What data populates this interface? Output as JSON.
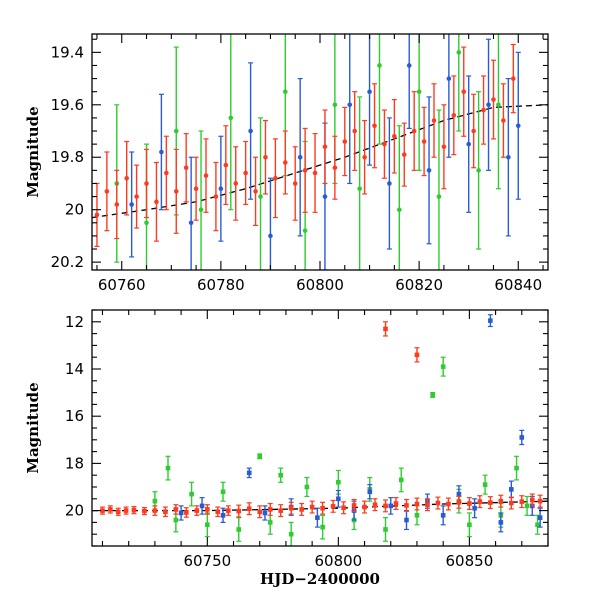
{
  "chart_data": [
    {
      "type": "scatter",
      "panel": "top",
      "xlabel": "",
      "ylabel": "Magnitude",
      "xlim": [
        60754,
        60846
      ],
      "ylim": [
        20.23,
        19.33
      ],
      "y_inverted": true,
      "xticks": [
        60760,
        60780,
        60800,
        60820,
        60840
      ],
      "xtick_labels": [
        "60760",
        "60780",
        "60800",
        "60820",
        "60840"
      ],
      "yticks": [
        19.4,
        19.6,
        19.8,
        20.0,
        20.2
      ],
      "ytick_labels": [
        "19.4",
        "19.6",
        "19.8",
        "20",
        "20.2"
      ],
      "grid": false,
      "legend": "none",
      "series": [
        {
          "color": "#ff3b1f",
          "marker": "circle-errorbar",
          "points": [
            [
              60755,
              20.02,
              0.12
            ],
            [
              60757,
              19.93,
              0.15
            ],
            [
              60759,
              19.98,
              0.13
            ],
            [
              60761,
              19.88,
              0.14
            ],
            [
              60763,
              19.95,
              0.12
            ],
            [
              60765,
              19.9,
              0.13
            ],
            [
              60767,
              19.97,
              0.15
            ],
            [
              60769,
              19.86,
              0.14
            ],
            [
              60771,
              19.93,
              0.16
            ],
            [
              60773,
              19.84,
              0.13
            ],
            [
              60775,
              19.92,
              0.12
            ],
            [
              60777,
              19.87,
              0.14
            ],
            [
              60779,
              19.95,
              0.13
            ],
            [
              60781,
              19.83,
              0.15
            ],
            [
              60783,
              19.9,
              0.14
            ],
            [
              60785,
              19.86,
              0.12
            ],
            [
              60787,
              19.93,
              0.13
            ],
            [
              60789,
              19.8,
              0.14
            ],
            [
              60791,
              19.88,
              0.15
            ],
            [
              60793,
              19.82,
              0.12
            ],
            [
              60795,
              19.9,
              0.14
            ],
            [
              60797,
              19.85,
              0.16
            ],
            [
              60799,
              19.86,
              0.15
            ],
            [
              60801,
              19.76,
              0.14
            ],
            [
              60803,
              19.84,
              0.12
            ],
            [
              60805,
              19.74,
              0.13
            ],
            [
              60807,
              19.7,
              0.15
            ],
            [
              60809,
              19.8,
              0.14
            ],
            [
              60811,
              19.68,
              0.16
            ],
            [
              60813,
              19.75,
              0.13
            ],
            [
              60815,
              19.72,
              0.14
            ],
            [
              60817,
              19.79,
              0.12
            ],
            [
              60819,
              19.7,
              0.15
            ],
            [
              60821,
              19.74,
              0.13
            ],
            [
              60823,
              19.66,
              0.14
            ],
            [
              60825,
              19.76,
              0.16
            ],
            [
              60827,
              19.64,
              0.15
            ],
            [
              60829,
              19.55,
              0.17
            ],
            [
              60831,
              19.7,
              0.14
            ],
            [
              60833,
              19.62,
              0.13
            ],
            [
              60835,
              19.58,
              0.15
            ],
            [
              60837,
              19.66,
              0.14
            ],
            [
              60839,
              19.5,
              0.13
            ]
          ]
        },
        {
          "color": "#2a5bd7",
          "marker": "circle-errorbar",
          "points": [
            [
              60762,
              19.98,
              0.2
            ],
            [
              60768,
              19.78,
              0.22
            ],
            [
              60774,
              20.05,
              0.25
            ],
            [
              60780,
              19.92,
              0.2
            ],
            [
              60786,
              19.7,
              0.26
            ],
            [
              60790,
              20.1,
              0.22
            ],
            [
              60796,
              19.8,
              0.3
            ],
            [
              60801,
              19.95,
              0.28
            ],
            [
              60806,
              19.6,
              0.3
            ],
            [
              60810,
              19.55,
              0.28
            ],
            [
              60814,
              19.9,
              0.25
            ],
            [
              60818,
              19.45,
              0.24
            ],
            [
              60822,
              19.85,
              0.28
            ],
            [
              60826,
              19.5,
              0.3
            ],
            [
              60830,
              19.75,
              0.26
            ],
            [
              60834,
              19.6,
              0.25
            ],
            [
              60838,
              19.8,
              0.3
            ],
            [
              60840,
              19.68,
              0.28
            ]
          ]
        },
        {
          "color": "#2ecc2e",
          "marker": "circle-errorbar",
          "points": [
            [
              60759,
              19.9,
              0.3
            ],
            [
              60765,
              20.05,
              0.3
            ],
            [
              60771,
              19.7,
              0.32
            ],
            [
              60776,
              20.0,
              0.3
            ],
            [
              60782,
              19.65,
              0.35
            ],
            [
              60788,
              19.95,
              0.3
            ],
            [
              60793,
              19.55,
              0.32
            ],
            [
              60797,
              20.08,
              0.34
            ],
            [
              60803,
              19.6,
              0.3
            ],
            [
              60808,
              19.92,
              0.35
            ],
            [
              60812,
              19.45,
              0.3
            ],
            [
              60816,
              20.0,
              0.32
            ],
            [
              60820,
              19.55,
              0.3
            ],
            [
              60824,
              19.95,
              0.33
            ],
            [
              60828,
              19.4,
              0.3
            ],
            [
              60832,
              19.85,
              0.3
            ],
            [
              60836,
              19.6,
              0.32
            ]
          ]
        }
      ],
      "trend_line": {
        "style": "dashed",
        "color": "#000000",
        "points": [
          [
            60754,
            20.03
          ],
          [
            60765,
            20.0
          ],
          [
            60775,
            19.97
          ],
          [
            60785,
            19.92
          ],
          [
            60795,
            19.86
          ],
          [
            60805,
            19.8
          ],
          [
            60815,
            19.73
          ],
          [
            60825,
            19.66
          ],
          [
            60835,
            19.61
          ],
          [
            60846,
            19.6
          ]
        ]
      }
    },
    {
      "type": "scatter",
      "panel": "bottom",
      "xlabel": "HJD−2400000",
      "ylabel": "Magnitude",
      "xlim": [
        60706,
        60880
      ],
      "ylim": [
        21.5,
        11.5
      ],
      "y_inverted": true,
      "xticks": [
        60750,
        60800,
        60850
      ],
      "xtick_labels": [
        "60750",
        "60800",
        "60850"
      ],
      "yticks": [
        12,
        14,
        16,
        18,
        20
      ],
      "ytick_labels": [
        "12",
        "14",
        "16",
        "18",
        "20"
      ],
      "grid": false,
      "legend": "none",
      "series": [
        {
          "color": "#ff3b1f",
          "marker": "square-errorbar",
          "points": [
            [
              60710,
              20.0,
              0.15
            ],
            [
              60713,
              19.95,
              0.15
            ],
            [
              60716,
              20.05,
              0.15
            ],
            [
              60719,
              20.0,
              0.15
            ],
            [
              60722,
              19.98,
              0.15
            ],
            [
              60726,
              20.02,
              0.15
            ],
            [
              60730,
              20.0,
              0.2
            ],
            [
              60734,
              20.05,
              0.2
            ],
            [
              60738,
              19.95,
              0.2
            ],
            [
              60742,
              20.08,
              0.2
            ],
            [
              60746,
              20.0,
              0.2
            ],
            [
              60750,
              19.95,
              0.2
            ],
            [
              60754,
              20.05,
              0.2
            ],
            [
              60758,
              20.0,
              0.2
            ],
            [
              60762,
              20.02,
              0.25
            ],
            [
              60766,
              19.92,
              0.25
            ],
            [
              60770,
              20.05,
              0.25
            ],
            [
              60774,
              19.95,
              0.25
            ],
            [
              60778,
              20.0,
              0.25
            ],
            [
              60782,
              19.9,
              0.25
            ],
            [
              60786,
              19.95,
              0.25
            ],
            [
              60790,
              19.85,
              0.25
            ],
            [
              60794,
              19.9,
              0.25
            ],
            [
              60798,
              19.82,
              0.25
            ],
            [
              60802,
              19.88,
              0.25
            ],
            [
              60806,
              19.78,
              0.25
            ],
            [
              60810,
              19.85,
              0.25
            ],
            [
              60814,
              19.75,
              0.25
            ],
            [
              60818,
              19.8,
              0.25
            ],
            [
              60822,
              19.7,
              0.25
            ],
            [
              60826,
              19.78,
              0.25
            ],
            [
              60830,
              19.72,
              0.25
            ],
            [
              60834,
              19.75,
              0.25
            ],
            [
              60838,
              19.68,
              0.25
            ],
            [
              60842,
              19.72,
              0.25
            ],
            [
              60846,
              19.65,
              0.25
            ],
            [
              60850,
              19.7,
              0.25
            ],
            [
              60854,
              19.62,
              0.25
            ],
            [
              60858,
              19.66,
              0.25
            ],
            [
              60862,
              19.6,
              0.25
            ],
            [
              60866,
              19.68,
              0.25
            ],
            [
              60870,
              19.62,
              0.25
            ],
            [
              60874,
              19.55,
              0.25
            ],
            [
              60877,
              19.6,
              0.25
            ],
            [
              60818,
              12.3,
              0.3
            ],
            [
              60830,
              13.4,
              0.3
            ]
          ]
        },
        {
          "color": "#2a5bd7",
          "marker": "square-errorbar",
          "points": [
            [
              60740,
              20.1,
              0.3
            ],
            [
              60748,
              19.8,
              0.35
            ],
            [
              60756,
              20.2,
              0.3
            ],
            [
              60766,
              18.4,
              0.2
            ],
            [
              60772,
              20.1,
              0.3
            ],
            [
              60782,
              19.85,
              0.35
            ],
            [
              60792,
              20.3,
              0.4
            ],
            [
              60800,
              19.5,
              0.35
            ],
            [
              60806,
              20.0,
              0.4
            ],
            [
              60812,
              19.2,
              0.3
            ],
            [
              60820,
              19.8,
              0.35
            ],
            [
              60826,
              20.4,
              0.4
            ],
            [
              60834,
              19.6,
              0.3
            ],
            [
              60840,
              20.2,
              0.4
            ],
            [
              60846,
              19.3,
              0.35
            ],
            [
              60852,
              19.9,
              0.4
            ],
            [
              60858,
              11.95,
              0.25
            ],
            [
              60862,
              20.5,
              0.4
            ],
            [
              60866,
              19.1,
              0.35
            ],
            [
              60870,
              16.9,
              0.3
            ],
            [
              60874,
              19.8,
              0.4
            ],
            [
              60877,
              20.3,
              0.4
            ]
          ]
        },
        {
          "color": "#2ecc2e",
          "marker": "square-errorbar",
          "points": [
            [
              60730,
              19.6,
              0.4
            ],
            [
              60735,
              18.2,
              0.5
            ],
            [
              60738,
              20.4,
              0.5
            ],
            [
              60744,
              19.3,
              0.5
            ],
            [
              60750,
              20.6,
              0.5
            ],
            [
              60756,
              19.2,
              0.4
            ],
            [
              60762,
              20.8,
              0.5
            ],
            [
              60770,
              17.7,
              0.1
            ],
            [
              60774,
              20.5,
              0.5
            ],
            [
              60778,
              18.5,
              0.3
            ],
            [
              60782,
              21.0,
              0.5
            ],
            [
              60788,
              19.0,
              0.4
            ],
            [
              60794,
              20.7,
              0.5
            ],
            [
              60800,
              18.8,
              0.5
            ],
            [
              60806,
              20.4,
              0.4
            ],
            [
              60812,
              19.1,
              0.5
            ],
            [
              60818,
              20.8,
              0.5
            ],
            [
              60824,
              18.7,
              0.5
            ],
            [
              60830,
              20.2,
              0.4
            ],
            [
              60836,
              15.1,
              0.1
            ],
            [
              60840,
              13.9,
              0.4
            ],
            [
              60846,
              19.6,
              0.5
            ],
            [
              60850,
              20.6,
              0.5
            ],
            [
              60856,
              18.9,
              0.4
            ],
            [
              60862,
              20.2,
              0.5
            ],
            [
              60868,
              18.2,
              0.5
            ],
            [
              60872,
              19.8,
              0.4
            ],
            [
              60876,
              20.6,
              0.4
            ]
          ]
        }
      ],
      "trend_line": {
        "style": "dashed",
        "color": "#000000",
        "points": [
          [
            60706,
            20.0
          ],
          [
            60750,
            20.0
          ],
          [
            60800,
            19.9
          ],
          [
            60840,
            19.72
          ],
          [
            60880,
            19.6
          ]
        ]
      }
    }
  ]
}
